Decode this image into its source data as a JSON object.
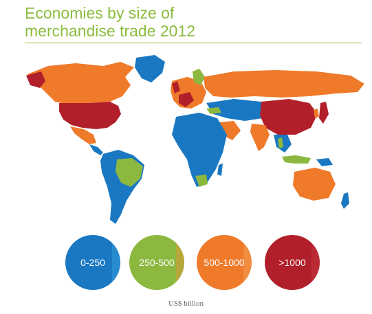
{
  "title": {
    "line1": "Economies by size of",
    "line2": "merchandise trade 2012"
  },
  "legend": {
    "items": [
      {
        "label": "0-250",
        "color": "#1a78c2",
        "accent": "#3aa0e0"
      },
      {
        "label": "250-500",
        "color": "#8cb83f",
        "accent": "#e89436"
      },
      {
        "label": "500-1000",
        "color": "#ef7a2a",
        "accent": "#f5a25a"
      },
      {
        "label": ">1000",
        "color": "#b11f2b",
        "accent": "#c83a44"
      }
    ],
    "unit": "US$ billion"
  },
  "colors": {
    "blue": "#1a78c2",
    "green": "#8cb83f",
    "orange": "#ef7a2a",
    "red": "#b11f2b"
  }
}
